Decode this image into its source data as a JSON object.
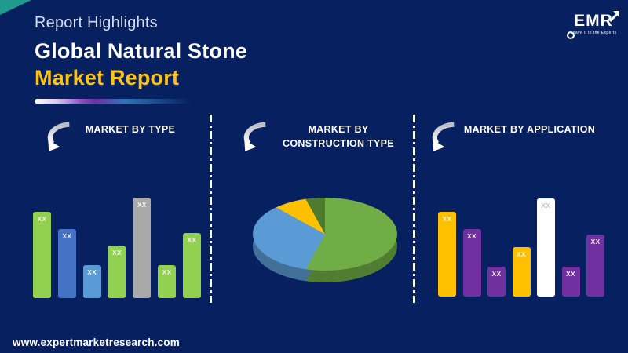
{
  "page": {
    "background_color": "#072060"
  },
  "decor": {
    "corner_triangle_color": "#1f9a8c",
    "underline_gradient_colors": [
      "#FFFFFF",
      "#7030A0",
      "#2E75B6"
    ],
    "divider_style": "white-dashed-vertical"
  },
  "header": {
    "eyebrow": "Report Highlights",
    "title_line1": "Global Natural Stone",
    "title_line2": "Market Report",
    "title_accent_color": "#FFC312"
  },
  "logo": {
    "text": "EMR",
    "tagline": "Leave it to the Experts"
  },
  "sections": [
    {
      "label": "MARKET BY TYPE"
    },
    {
      "label": "MARKET BY CONSTRUCTION TYPE"
    },
    {
      "label": "MARKET BY APPLICATION"
    }
  ],
  "footer": {
    "website": "www.expertmarketresearch.com"
  },
  "chart_data": [
    {
      "type": "bar",
      "title": "Market by Type",
      "note": "data values masked as XX in preview",
      "bars": [
        {
          "label": "XX",
          "rel_height": 86,
          "color": "#92D050"
        },
        {
          "label": "XX",
          "rel_height": 69,
          "color": "#4472C4"
        },
        {
          "label": "XX",
          "rel_height": 33,
          "color": "#5B9BD5"
        },
        {
          "label": "XX",
          "rel_height": 52,
          "color": "#92D050"
        },
        {
          "label": "XX",
          "rel_height": 100,
          "color": "#A9A9A9"
        },
        {
          "label": "XX",
          "rel_height": 33,
          "color": "#92D050"
        },
        {
          "label": "XX",
          "rel_height": 65,
          "color": "#92D050"
        }
      ]
    },
    {
      "type": "pie",
      "title": "Market by Construction Type",
      "style": "3d",
      "slices": [
        {
          "name": "slice-1",
          "pct": 58,
          "color": "#70AD47"
        },
        {
          "name": "slice-2",
          "pct": 25,
          "color": "#5B9BD5"
        },
        {
          "name": "slice-3",
          "pct": 9,
          "color": "#FFC000"
        },
        {
          "name": "slice-4",
          "pct": 8,
          "color": "#4F7B2E"
        }
      ]
    },
    {
      "type": "bar",
      "title": "Market by Application",
      "note": "data values masked as XX in preview",
      "bars": [
        {
          "label": "XX",
          "rel_height": 84,
          "color": "#FFC000"
        },
        {
          "label": "XX",
          "rel_height": 67,
          "color": "#7030A0"
        },
        {
          "label": "XX",
          "rel_height": 30,
          "color": "#7030A0"
        },
        {
          "label": "XX",
          "rel_height": 49,
          "color": "#FFC000"
        },
        {
          "label": "XX",
          "rel_height": 98,
          "color": "#FFFFFF",
          "label_color": "#C6C6C6"
        },
        {
          "label": "XX",
          "rel_height": 30,
          "color": "#7030A0"
        },
        {
          "label": "XX",
          "rel_height": 62,
          "color": "#7030A0"
        }
      ]
    }
  ]
}
